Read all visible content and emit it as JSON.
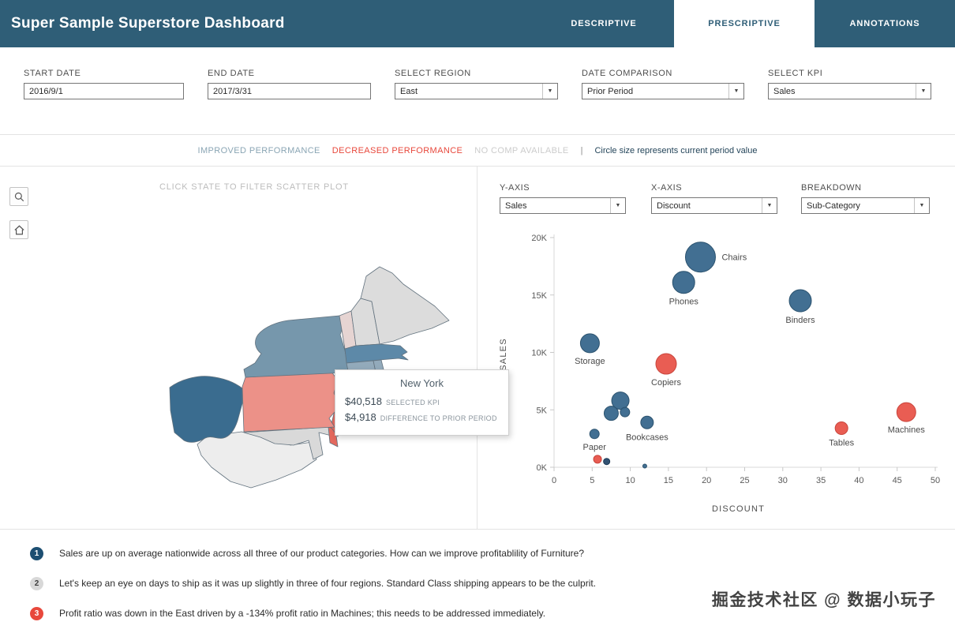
{
  "colors": {
    "header": "#2f5e77",
    "blue": "#38678c",
    "blue_stroke": "#2c536f",
    "red": "#e8544a",
    "red_stroke": "#c9453c",
    "navy": "#27496a",
    "navy_stroke": "#1d3a56",
    "improved_text": "#8aa5b4",
    "decreased_text": "#e8483c",
    "no_comp_text": "#cccccc",
    "annotation_1_badge": "#1d4f72",
    "annotation_2_badge": "#d8d8d8",
    "annotation_3_badge": "#e8483c"
  },
  "icons": {
    "caret": "▼"
  },
  "header": {
    "title": "Super Sample Superstore Dashboard",
    "tabs": [
      {
        "label": "DESCRIPTIVE",
        "active": false
      },
      {
        "label": "PRESCRIPTIVE",
        "active": true
      },
      {
        "label": "ANNOTATIONS",
        "active": false
      }
    ]
  },
  "filters": {
    "start_date": {
      "label": "START DATE",
      "value": "2016/9/1"
    },
    "end_date": {
      "label": "END DATE",
      "value": "2017/3/31"
    },
    "region": {
      "label": "SELECT REGION",
      "value": "East"
    },
    "date_comparison": {
      "label": "DATE COMPARISON",
      "value": "Prior Period"
    },
    "kpi": {
      "label": "SELECT KPI",
      "value": "Sales"
    }
  },
  "legend": {
    "improved": "IMPROVED PERFORMANCE",
    "decreased": "DECREASED PERFORMANCE",
    "no_comp": "NO COMP AVAILABLE",
    "pipe": "|",
    "note": "Circle size represents current period value"
  },
  "map": {
    "hint": "CLICK STATE TO FILTER SCATTER PLOT",
    "tooltip": {
      "state": "New York",
      "kpi_value": "$40,518",
      "kpi_label": "SELECTED KPI",
      "diff_value": "$4,918",
      "diff_label": "DIFFERENCE TO PRIOR PERIOD"
    },
    "states": {
      "ohio": {
        "name": "Ohio",
        "color": "#3a6c8f"
      },
      "pennsylvania": {
        "name": "Pennsylvania",
        "color": "#ec9188"
      },
      "new_york": {
        "name": "New York",
        "color": "#7697ac"
      },
      "new_jersey": {
        "name": "New Jersey",
        "color": "#e4695e"
      },
      "maryland": {
        "name": "Maryland",
        "color": "#d9d9d9"
      },
      "delaware": {
        "name": "Delaware",
        "color": "#e4695e"
      },
      "virginia_west_virginia": {
        "name": "Virginia / West Virginia",
        "color": "#ededed"
      },
      "vermont": {
        "name": "Vermont",
        "color": "#e6d4d2"
      },
      "new_hampshire": {
        "name": "New Hampshire",
        "color": "#dcdcdc"
      },
      "maine": {
        "name": "Maine",
        "color": "#dcdcdc"
      },
      "massachusetts": {
        "name": "Massachusetts",
        "color": "#5d89a8"
      },
      "connecticut": {
        "name": "Connecticut",
        "color": "#93aabb"
      },
      "rhode_island": {
        "name": "Rhode Island",
        "color": "#93aabb"
      }
    }
  },
  "scatter_controls": {
    "y_axis": {
      "label": "Y-AXIS",
      "value": "Sales"
    },
    "x_axis": {
      "label": "X-AXIS",
      "value": "Discount"
    },
    "breakdown": {
      "label": "BREAKDOWN",
      "value": "Sub-Category"
    }
  },
  "chart_data": {
    "type": "scatter",
    "title": "",
    "xlabel": "DISCOUNT",
    "ylabel": "SALES",
    "xlim": [
      0,
      50
    ],
    "ylim": [
      0,
      20000
    ],
    "x_ticks": [
      0,
      5,
      10,
      15,
      20,
      25,
      30,
      35,
      40,
      45,
      50
    ],
    "y_ticks": [
      {
        "v": 0,
        "label": "0K"
      },
      {
        "v": 5000,
        "label": "5K"
      },
      {
        "v": 10000,
        "label": "10K"
      },
      {
        "v": 15000,
        "label": "15K"
      },
      {
        "v": 20000,
        "label": "20K"
      }
    ],
    "points": [
      {
        "label": "Chairs",
        "x": 19.2,
        "y": 18300,
        "r": 19,
        "color": "blue",
        "label_pos": "right"
      },
      {
        "label": "Phones",
        "x": 17.0,
        "y": 16100,
        "r": 14,
        "color": "blue",
        "label_pos": "below"
      },
      {
        "label": "Binders",
        "x": 32.3,
        "y": 14500,
        "r": 14,
        "color": "blue",
        "label_pos": "below"
      },
      {
        "label": "Storage",
        "x": 4.7,
        "y": 10800,
        "r": 12,
        "color": "blue",
        "label_pos": "below"
      },
      {
        "label": "Copiers",
        "x": 14.7,
        "y": 9000,
        "r": 13,
        "color": "red",
        "label_pos": "below"
      },
      {
        "label": "",
        "x": 8.7,
        "y": 5800,
        "r": 11,
        "color": "blue"
      },
      {
        "label": "",
        "x": 7.5,
        "y": 4700,
        "r": 9,
        "color": "blue"
      },
      {
        "label": "",
        "x": 9.3,
        "y": 4800,
        "r": 6,
        "color": "blue"
      },
      {
        "label": "Bookcases",
        "x": 12.2,
        "y": 3900,
        "r": 8,
        "color": "blue",
        "label_pos": "below"
      },
      {
        "label": "Paper",
        "x": 5.3,
        "y": 2900,
        "r": 6,
        "color": "blue",
        "label_pos": "below"
      },
      {
        "label": "",
        "x": 5.7,
        "y": 700,
        "r": 5,
        "color": "red"
      },
      {
        "label": "",
        "x": 6.9,
        "y": 500,
        "r": 4,
        "color": "navy"
      },
      {
        "label": "",
        "x": 11.9,
        "y": 100,
        "r": 2.5,
        "color": "blue"
      },
      {
        "label": "Tables",
        "x": 37.7,
        "y": 3400,
        "r": 8,
        "color": "red",
        "label_pos": "below"
      },
      {
        "label": "Machines",
        "x": 46.2,
        "y": 4800,
        "r": 12,
        "color": "red",
        "label_pos": "below"
      }
    ]
  },
  "annotations": [
    {
      "number": "1",
      "text": "Sales are up on average nationwide across all three of our product categories. How can we improve profitablility of Furniture?"
    },
    {
      "number": "2",
      "text": "Let's keep an eye on days to ship as it was up slightly in three of four regions. Standard Class shipping appears to be the culprit."
    },
    {
      "number": "3",
      "text": "Profit ratio was down in the East driven by a -134% profit ratio in Machines; this needs to be addressed immediately."
    }
  ],
  "watermark": "掘金技术社区 @ 数据小玩子"
}
